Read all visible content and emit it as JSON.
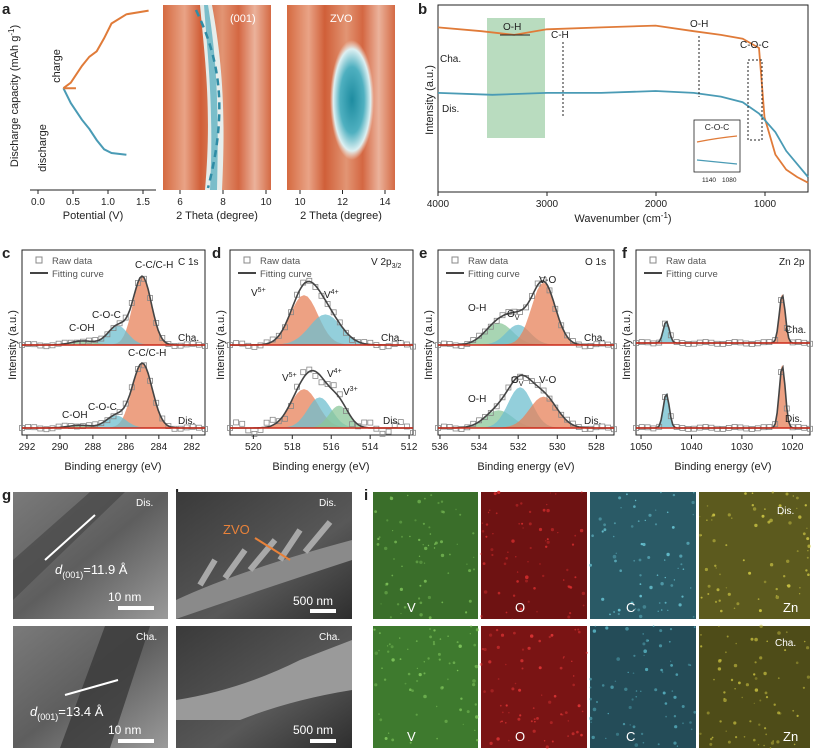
{
  "colors": {
    "charge": "#E07B39",
    "discharge": "#4A9BB5",
    "fill_orange": "#E8825A",
    "fill_blue": "#6FBFD0",
    "fill_green": "#8CC79A",
    "fit_line": "#CC2A1A",
    "raw_marker": "#888888",
    "band_green": "#B9DCBF",
    "map_bg": "#D9693E"
  },
  "panels": {
    "a": {
      "label": "a",
      "ylabel": "Discharge capacity (mAh g",
      "ylabel_sup": "-1",
      "ylabel_end": ")",
      "xlabel": "Potential (V)",
      "xticks": [
        "0.0",
        "0.5",
        "1.0",
        "1.5"
      ],
      "text_charge": "charge",
      "text_discharge": "discharge",
      "map1_title": "(001)",
      "map1_xticks": [
        "6",
        "8",
        "10"
      ],
      "map1_xlabel": "2 Theta (degree)",
      "map2_title": "ZVO",
      "map2_xticks": [
        "10",
        "12",
        "14"
      ],
      "map2_xlabel": "2 Theta (degree)"
    },
    "b": {
      "label": "b",
      "ylabel": "Intensity (a.u.)",
      "xlabel": "Wavenumber (cm",
      "xlabel_sup": "-1",
      "xlabel_end": ")",
      "xticks": [
        "4000",
        "3000",
        "2000",
        "1000"
      ],
      "label_cha": "Cha.",
      "label_dis": "Dis.",
      "ann_oh1": "O-H",
      "ann_ch": "C-H",
      "ann_oh2": "O-H",
      "ann_coc": "C-O-C",
      "inset_title": "C-O-C",
      "inset_ticks": [
        "1140",
        "1080"
      ]
    },
    "c": {
      "label": "c",
      "element": "C 1s",
      "xticks": [
        "292",
        "290",
        "288",
        "286",
        "284",
        "282"
      ],
      "xlabel": "Binding energy (eV)",
      "cha_peaks": [
        "C-C/C-H",
        "C-O-C",
        "C-OH"
      ],
      "dis_peaks": [
        "C-C/C-H",
        "C-O-C",
        "C-OH"
      ],
      "label_cha": "Cha.",
      "label_dis": "Dis."
    },
    "d": {
      "label": "d",
      "element": "V 2p",
      "element_sub": "3/2",
      "xticks": [
        "520",
        "518",
        "516",
        "514",
        "512"
      ],
      "xlabel": "Binding energy (eV)",
      "v5": "V",
      "v5sup": "5+",
      "v4": "V",
      "v4sup": "4+",
      "v3": "V",
      "v3sup": "3+",
      "label_cha": "Cha.",
      "label_dis": "Dis."
    },
    "e": {
      "label": "e",
      "element": "O 1s",
      "xticks": [
        "536",
        "534",
        "532",
        "530",
        "528"
      ],
      "xlabel": "Binding energy (eV)",
      "oh": "O-H",
      "ov": "O",
      "ov_sub": "V",
      "vo": "V-O",
      "label_cha": "Cha.",
      "label_dis": "Dis."
    },
    "f": {
      "label": "f",
      "element": "Zn 2p",
      "xticks": [
        "1050",
        "1040",
        "1030",
        "1020"
      ],
      "xlabel": "Binding energy (eV)",
      "label_cha": "Cha.",
      "label_dis": "Dis."
    },
    "g": {
      "label": "g",
      "dis_tag": "Dis.",
      "cha_tag": "Cha.",
      "d_letter": "d",
      "d_sub": "(001)",
      "dis_value": "=11.9 Å",
      "cha_value": "=13.4 Å",
      "scale": "10 nm"
    },
    "h": {
      "label": "h",
      "dis_tag": "Dis.",
      "cha_tag": "Cha.",
      "zvo": "ZVO",
      "scale": "500 nm"
    },
    "i": {
      "label": "i",
      "dis_tag": "Dis.",
      "cha_tag": "Cha.",
      "elements": [
        "V",
        "O",
        "C",
        "Zn"
      ]
    }
  },
  "common": {
    "ylabel_intensity": "Intensity (a.u.)",
    "raw_data": "Raw data",
    "fitting_curve": "Fitting curve"
  },
  "chart_data": [
    {
      "type": "line",
      "id": "a-discharge-charge",
      "xlabel": "Potential (V)",
      "ylabel": "Discharge capacity (mAh g-1)",
      "xlim": [
        0,
        1.7
      ],
      "series": [
        {
          "name": "charge",
          "x": [
            0.45,
            0.55,
            0.7,
            0.8,
            0.9,
            1.0,
            1.1,
            1.3,
            1.6
          ],
          "y": [
            0.55,
            0.58,
            0.67,
            0.72,
            0.75,
            0.82,
            0.9,
            0.95,
            0.97
          ]
        },
        {
          "name": "discharge",
          "x": [
            0.45,
            0.55,
            0.7,
            0.8,
            0.9,
            1.0,
            1.1,
            1.3
          ],
          "y": [
            0.55,
            0.47,
            0.38,
            0.33,
            0.27,
            0.22,
            0.2,
            0.19
          ]
        }
      ]
    },
    {
      "type": "line",
      "id": "b-ftir",
      "xlabel": "Wavenumber (cm-1)",
      "xlim": [
        4000,
        600
      ],
      "series": [
        {
          "name": "Cha.",
          "x": [
            4000,
            3600,
            3300,
            3000,
            2500,
            2000,
            1650,
            1400,
            1200,
            1050,
            1000,
            900,
            800,
            700,
            600
          ],
          "y": [
            0.88,
            0.86,
            0.84,
            0.87,
            0.88,
            0.89,
            0.86,
            0.84,
            0.82,
            0.77,
            0.4,
            0.2,
            0.12,
            0.08,
            0.05
          ]
        },
        {
          "name": "Dis.",
          "x": [
            4000,
            3500,
            3000,
            2500,
            2000,
            1650,
            1400,
            1200,
            1050,
            900,
            800,
            700,
            600
          ],
          "y": [
            0.53,
            0.52,
            0.53,
            0.53,
            0.54,
            0.53,
            0.51,
            0.48,
            0.42,
            0.32,
            0.22,
            0.15,
            0.08
          ]
        }
      ]
    },
    {
      "type": "line",
      "id": "c-C1s",
      "xlim": [
        292,
        281
      ],
      "peaks_cha": [
        285,
        286.5,
        288.6
      ],
      "peaks_dis": [
        285,
        286.6,
        288.8
      ]
    },
    {
      "type": "line",
      "id": "d-V2p",
      "xlim": [
        521,
        512
      ],
      "peaks_cha": [
        517.4,
        516.3
      ],
      "peaks_dis": [
        517.4,
        516.6,
        515.6
      ]
    },
    {
      "type": "line",
      "id": "e-O1s",
      "xlim": [
        536,
        527
      ],
      "peaks_cha": [
        533.0,
        532.0,
        530.7
      ],
      "peaks_dis": [
        533.0,
        531.9,
        530.7
      ]
    },
    {
      "type": "line",
      "id": "f-Zn2p",
      "xlim": [
        1050,
        1017
      ],
      "peaks": [
        1045.0,
        1022.0
      ]
    }
  ]
}
